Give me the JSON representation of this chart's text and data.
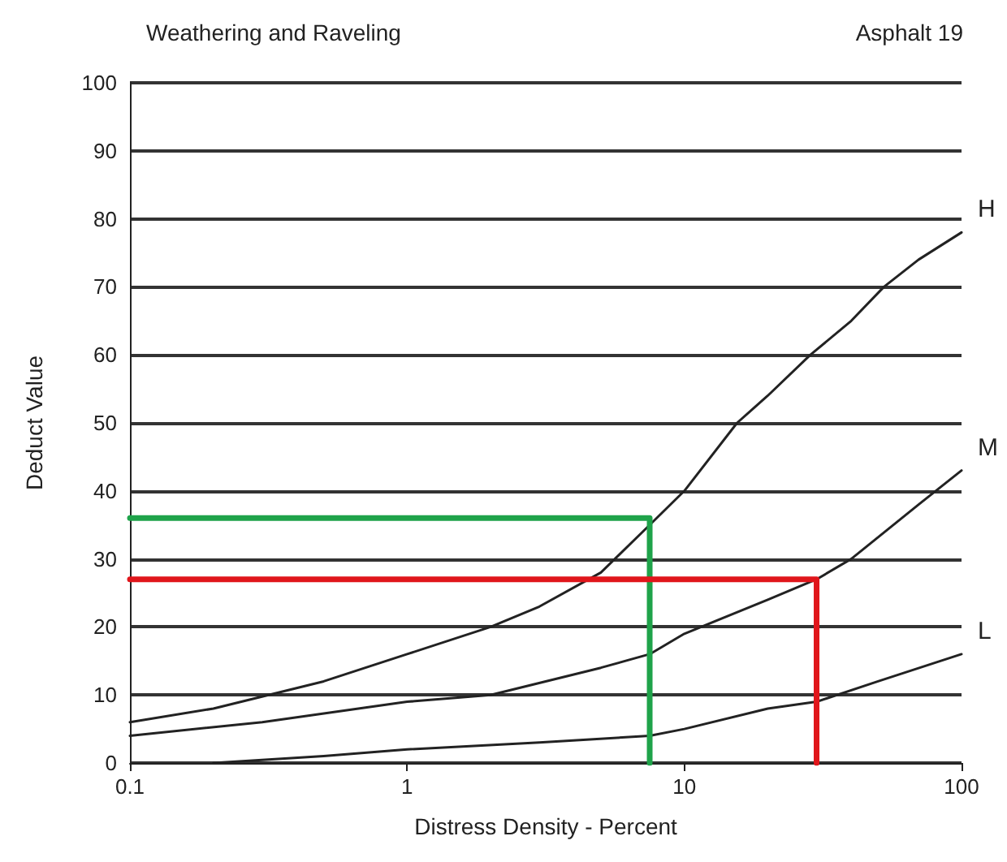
{
  "chart_data": {
    "type": "line",
    "title": "Weathering and Raveling",
    "subtitle": "Asphalt 19",
    "xlabel": "Distress Density - Percent",
    "ylabel": "Deduct Value",
    "log": "x",
    "xlim": [
      0.1,
      100
    ],
    "xticks": [
      0.1,
      1,
      10,
      100
    ],
    "ylim": [
      0,
      100
    ],
    "yticks": [
      0,
      10,
      20,
      30,
      40,
      50,
      60,
      70,
      80,
      90,
      100
    ],
    "grid": "y",
    "legend": false,
    "marker": "none",
    "line_style": "solid",
    "series": [
      {
        "name": "H",
        "color": "#222222",
        "x": [
          0.1,
          0.2,
          0.5,
          1,
          2,
          3,
          5,
          7.5,
          10,
          15.5,
          20,
          28.5,
          40,
          52.5,
          70,
          100
        ],
        "values": [
          6,
          8,
          12,
          16,
          20,
          23,
          28,
          35,
          40,
          50,
          54,
          60,
          65,
          70,
          74,
          78
        ]
      },
      {
        "name": "M",
        "color": "#222222",
        "x": [
          0.1,
          0.3,
          1,
          2,
          5,
          7.5,
          10,
          20,
          30,
          40,
          70,
          100
        ],
        "values": [
          4,
          6,
          9,
          10,
          14,
          16,
          19,
          24,
          27,
          30,
          38,
          43
        ]
      },
      {
        "name": "L",
        "color": "#222222",
        "x": [
          0.2,
          0.5,
          1,
          3,
          7.5,
          10,
          20,
          30,
          50,
          100
        ],
        "values": [
          0,
          1,
          2,
          3,
          4,
          5,
          8,
          9,
          12,
          16
        ]
      },
      {
        "color": "#1fa34a",
        "x": [
          0.1,
          7.5,
          7.5
        ],
        "values": [
          36,
          36,
          0
        ]
      },
      {
        "color": "#e0161b",
        "x": [
          0.1,
          30,
          30
        ],
        "values": [
          27,
          27,
          0
        ]
      }
    ]
  }
}
